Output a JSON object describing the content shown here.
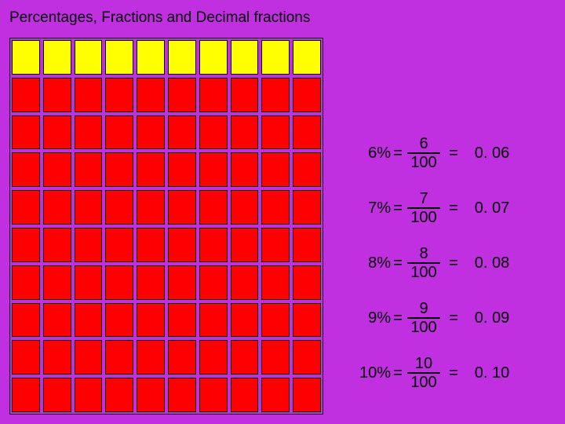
{
  "title": "Percentages, Fractions and Decimal fractions",
  "grid": {
    "rows": 10,
    "cols": 10,
    "yellow_count": 10,
    "colors": {
      "yellow": "#ffff00",
      "red": "#ff0000",
      "border": "#000000",
      "background": "#c030e0"
    }
  },
  "equations": [
    {
      "percent": "6%",
      "eq1": "=",
      "num": "6",
      "den": "100",
      "eq2": "=",
      "decimal": "0. 06"
    },
    {
      "percent": "7%",
      "eq1": "=",
      "num": "7",
      "den": "100",
      "eq2": "=",
      "decimal": "0. 07"
    },
    {
      "percent": "8%",
      "eq1": "=",
      "num": "8",
      "den": "100",
      "eq2": "=",
      "decimal": "0. 08"
    },
    {
      "percent": "9%",
      "eq1": "=",
      "num": "9",
      "den": "100",
      "eq2": "=",
      "decimal": "0. 09"
    },
    {
      "percent": "10%",
      "eq1": "=",
      "num": "10",
      "den": "100",
      "eq2": "=",
      "decimal": "0. 10"
    }
  ],
  "typography": {
    "title_fontsize": 19,
    "equation_fontsize": 20,
    "font_family": "Arial",
    "text_color": "#000000"
  }
}
